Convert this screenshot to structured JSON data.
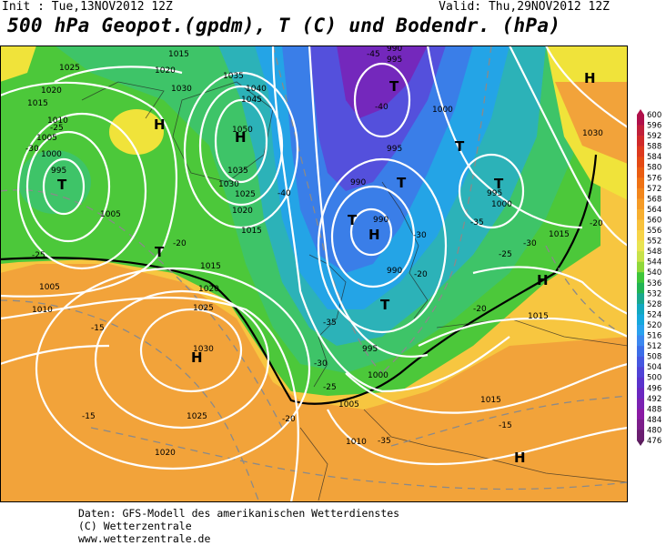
{
  "header": {
    "init": "Init : Tue,13NOV2012 12Z",
    "valid": "Valid: Thu,29NOV2012 12Z",
    "title": "500 hPa Geopot.(gpdm), T (C) und Bodendr. (hPa)"
  },
  "legend": {
    "levels": [
      "600",
      "596",
      "592",
      "588",
      "584",
      "580",
      "576",
      "572",
      "568",
      "564",
      "560",
      "556",
      "552",
      "548",
      "544",
      "540",
      "536",
      "532",
      "528",
      "524",
      "520",
      "516",
      "512",
      "508",
      "504",
      "500",
      "496",
      "492",
      "488",
      "484",
      "480",
      "476"
    ],
    "colors": [
      "#b0104a",
      "#c0203a",
      "#d02a2a",
      "#dd3a1e",
      "#e44a14",
      "#ea5d12",
      "#ef7214",
      "#f2861c",
      "#f59b26",
      "#f7af30",
      "#f8c23c",
      "#f7d448",
      "#e9e452",
      "#c8e24a",
      "#90d83a",
      "#3fc63a",
      "#22b455",
      "#1aa88e",
      "#12a8c0",
      "#16a8dc",
      "#2aa2ee",
      "#3c88f0",
      "#3c6ee8",
      "#4658e0",
      "#5044d6",
      "#5a34cc",
      "#6a28c0",
      "#7a22b2",
      "#8a1aa4",
      "#7c1e8a",
      "#6a1e70",
      "#5a1c5c"
    ]
  },
  "map_labels": {
    "isobars": [
      "1025",
      "1020",
      "1015",
      "1010",
      "1005",
      "1000",
      "995",
      "1030",
      "1035",
      "1040",
      "1045",
      "1050",
      "1035",
      "1030",
      "1025",
      "1020",
      "1015",
      "995",
      "990",
      "990",
      "995",
      "990",
      "1000",
      "1005",
      "1010",
      "1015",
      "1020",
      "1025",
      "1030",
      "1005",
      "1010",
      "1015",
      "1020",
      "1025",
      "1030",
      "1000",
      "995",
      "1000",
      "990",
      "995",
      "1030",
      "1015",
      "1010",
      "1015",
      "1020"
    ],
    "temperatures": [
      "-25",
      "-30",
      "-25",
      "-15",
      "-15",
      "-20",
      "-25",
      "-30",
      "-35",
      "-40",
      "-45",
      "-40",
      "-35",
      "-30",
      "-25",
      "-20",
      "-20",
      "-25",
      "-30",
      "-35",
      "-20",
      "-15"
    ],
    "pressure_centers": [
      "H",
      "H",
      "H",
      "H",
      "H",
      "H",
      "T",
      "T",
      "T",
      "T",
      "T",
      "T",
      "T",
      "T",
      "T"
    ]
  },
  "footer": {
    "line1": "Daten: GFS-Modell des amerikanischen Wetterdienstes",
    "line2": "(C) Wetterzentrale",
    "line3": "www.wetterzentrale.de"
  }
}
